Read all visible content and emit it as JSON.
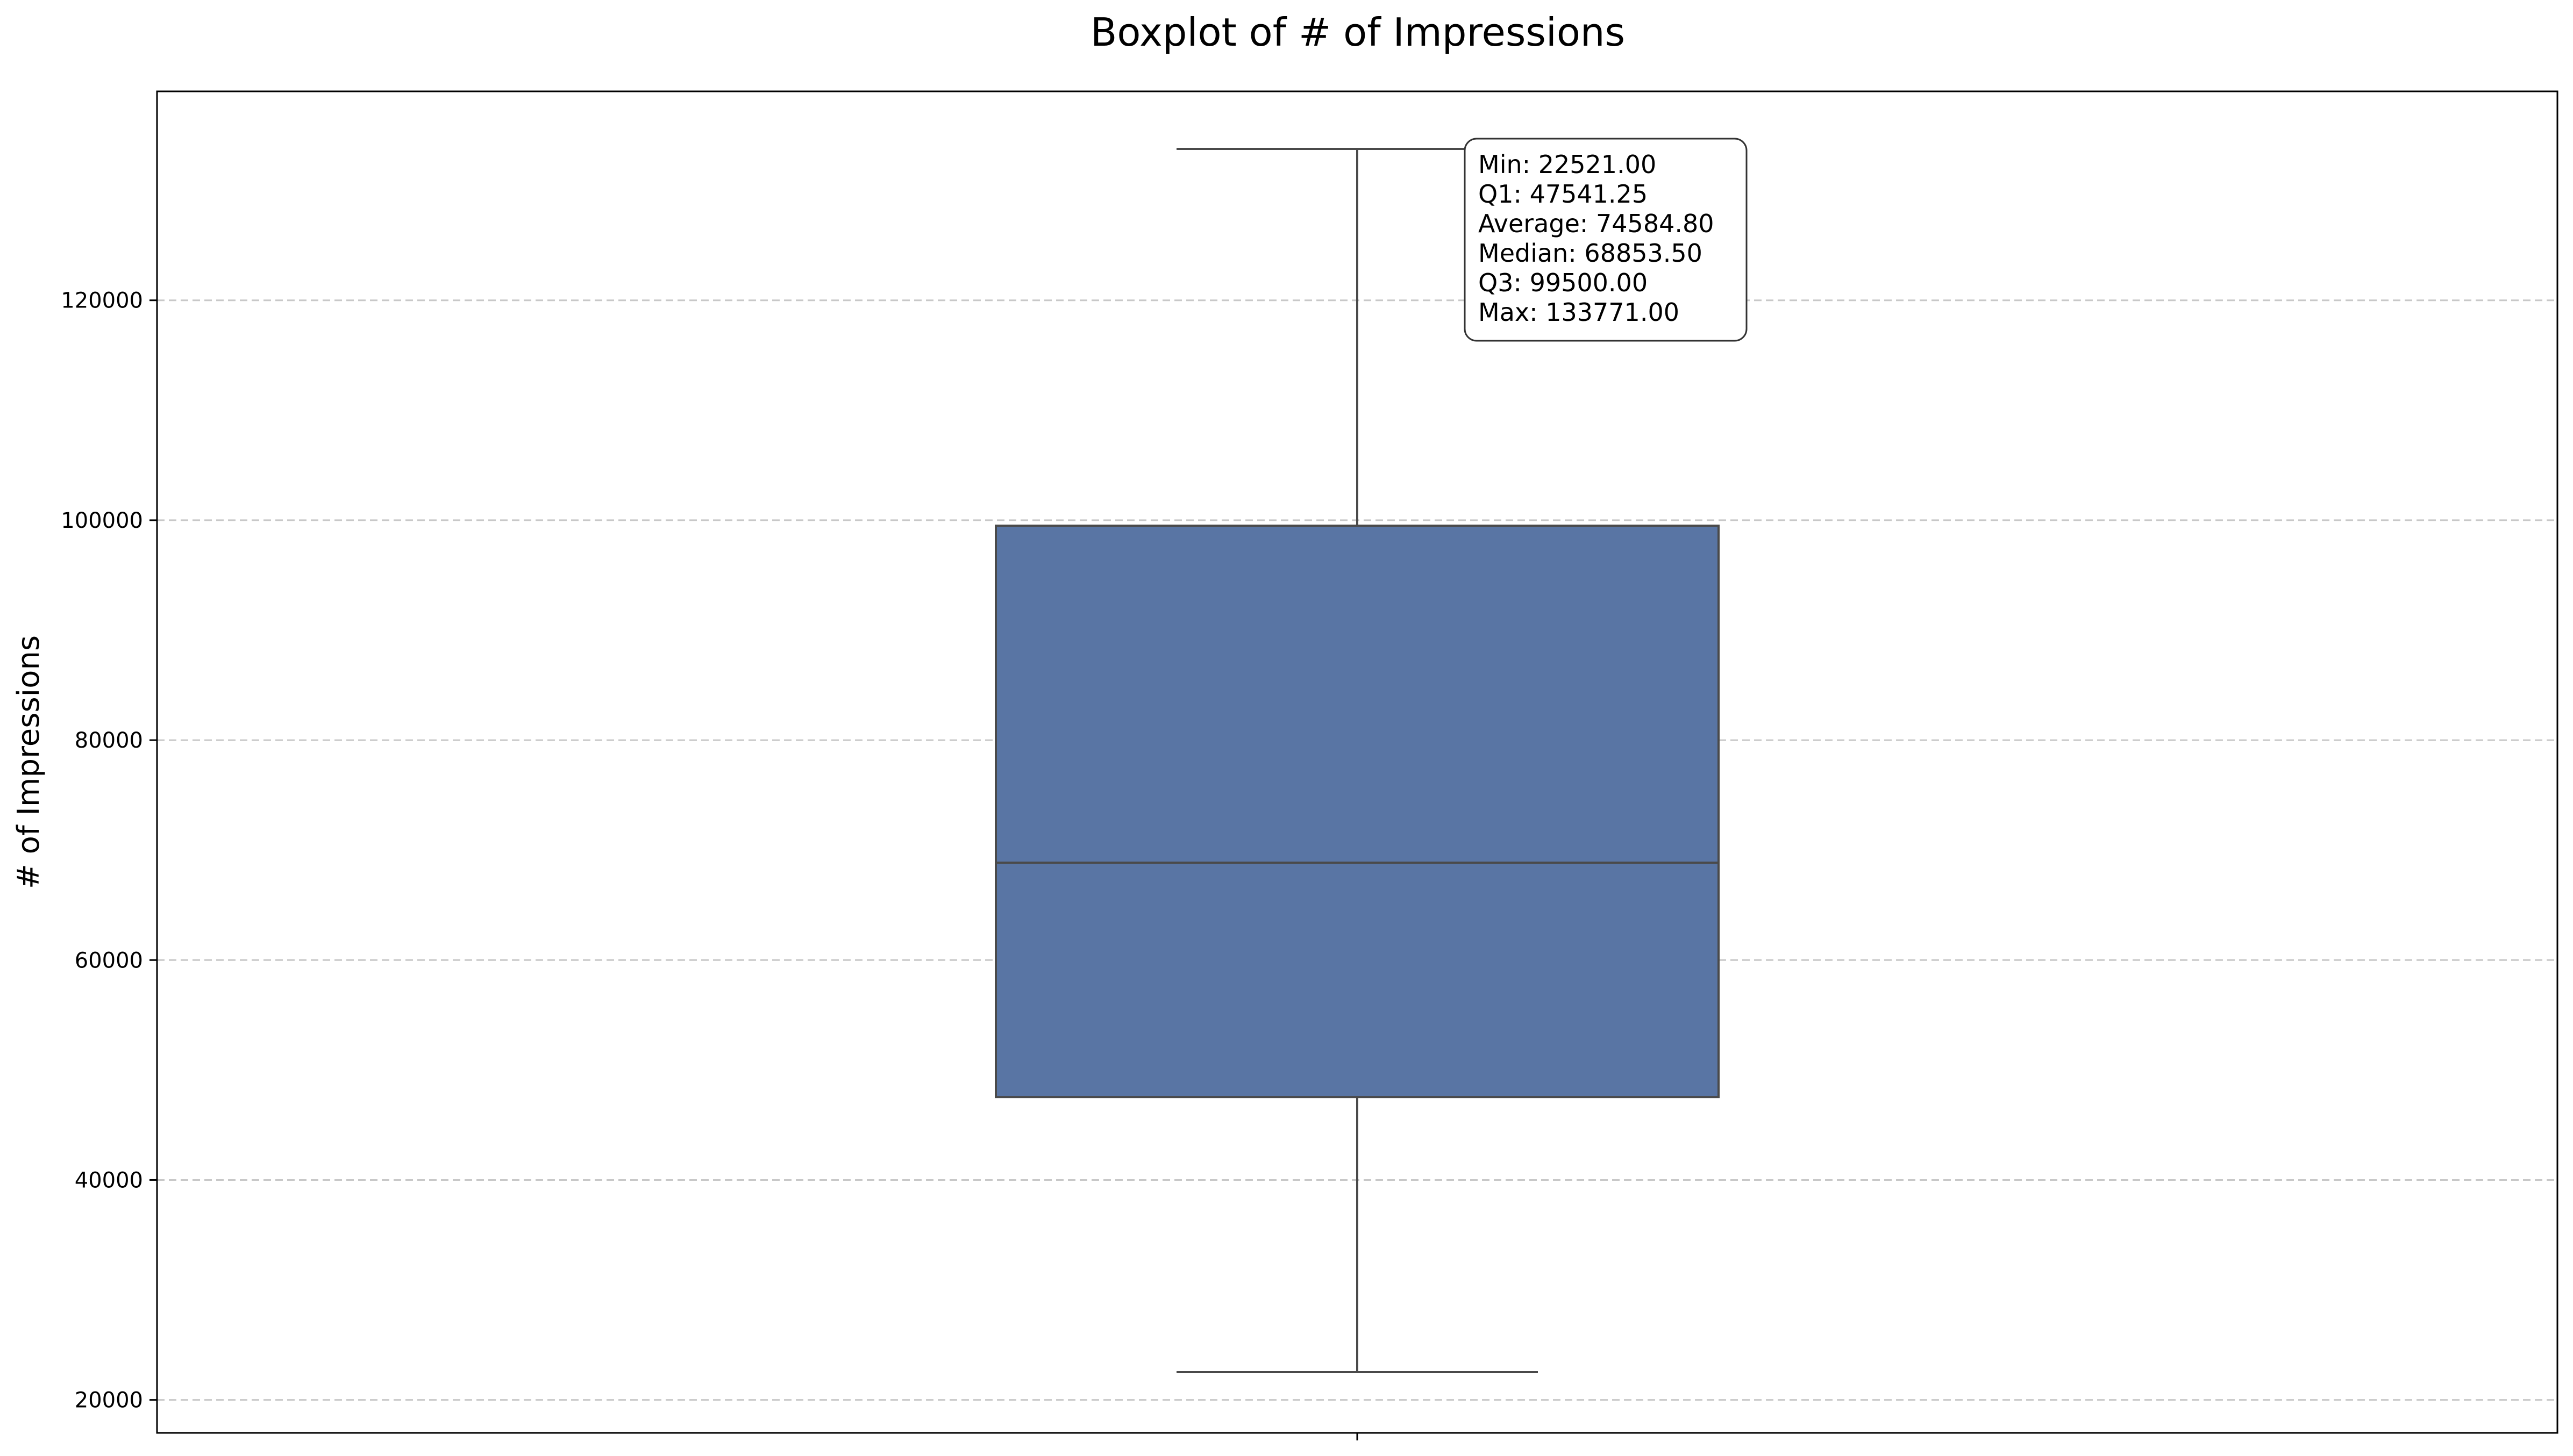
{
  "chart_data": {
    "type": "box",
    "title": "Boxplot of # of Impressions",
    "xlabel": "",
    "ylabel": "# of Impressions",
    "ylim": [
      17000,
      139000
    ],
    "yticks": [
      20000,
      40000,
      60000,
      80000,
      100000,
      120000
    ],
    "ytick_labels": [
      "20000",
      "40000",
      "60000",
      "80000",
      "100000",
      "120000"
    ],
    "grid": true,
    "box_color": "#5975a4",
    "line_color": "#4a4a4a",
    "stats": {
      "min": 22521.0,
      "q1": 47541.25,
      "mean": 74584.8,
      "median": 68853.5,
      "q3": 99500.0,
      "max": 133771.0
    },
    "annotation": {
      "position": "top-right-of-box",
      "lines": [
        "Min: 22521.00",
        "Q1: 47541.25",
        "Average: 74584.80",
        "Median: 68853.50",
        "Q3: 99500.00",
        "Max: 133771.00"
      ]
    }
  }
}
